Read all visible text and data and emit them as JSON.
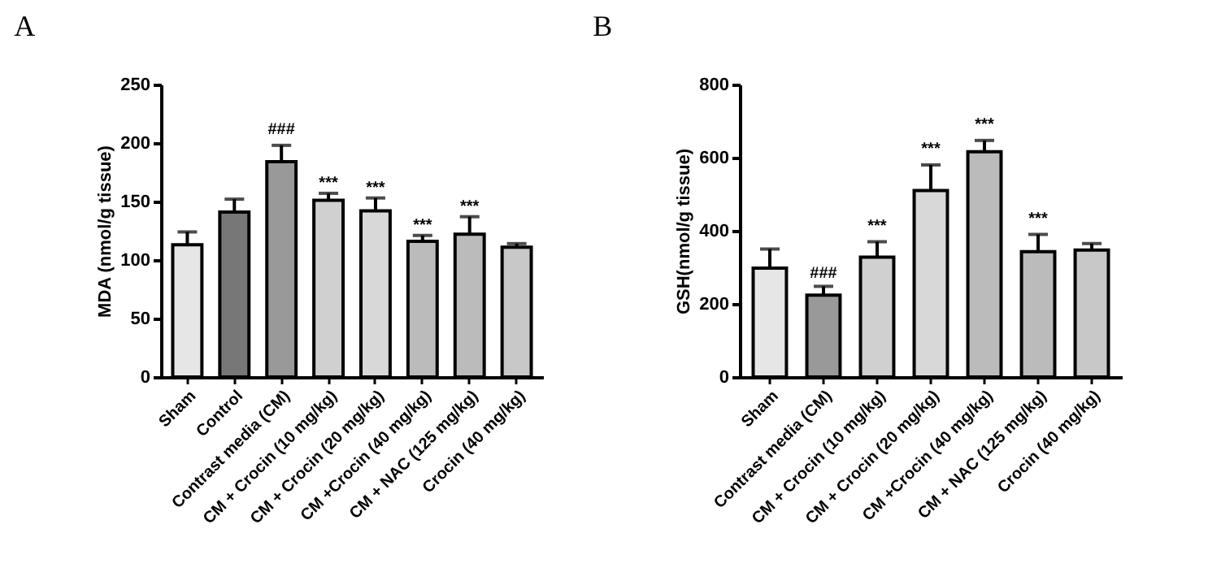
{
  "chart_data": [
    {
      "type": "bar",
      "title": "A",
      "ylabel": "MDA (nmol/g tissue)",
      "categories": [
        "Sham",
        "Control",
        "Contrast media (CM)",
        "CM + Crocin (10 mg/kg)",
        "CM + Crocin (20 mg/kg)",
        "CM +Crocin (40 mg/kg)",
        "CM + NAC (125 mg/kg)",
        "Crocin (40 mg/kg)"
      ],
      "values": [
        113,
        141,
        184,
        151,
        142,
        116,
        122,
        111
      ],
      "errors": [
        [
          113,
          124
        ],
        [
          141,
          152
        ],
        [
          184,
          198
        ],
        [
          151,
          157
        ],
        [
          142,
          153
        ],
        [
          116,
          121
        ],
        [
          122,
          137
        ],
        [
          111,
          114
        ]
      ],
      "colors": [
        "#e6e6e6",
        "#777777",
        "#999999",
        "#d0d0d0",
        "#d8d8d8",
        "#bbbbbb",
        "#bbbbbb",
        "#c8c8c8"
      ],
      "ylim": [
        0,
        250
      ],
      "yticks": [
        0,
        50,
        100,
        150,
        200,
        250
      ],
      "annotations": [
        {
          "text": "###",
          "x": "Contrast media (CM)",
          "y": 205
        },
        {
          "text": "***",
          "x": "CM + Crocin (10 mg/kg)",
          "y": 159
        },
        {
          "text": "***",
          "x": "CM + Crocin (20 mg/kg)",
          "y": 155
        },
        {
          "text": "***",
          "x": "CM +Crocin (40 mg/kg)",
          "y": 123
        },
        {
          "text": "***",
          "x": "CM + NAC (125 mg/kg)",
          "y": 139
        }
      ]
    },
    {
      "type": "bar",
      "title": "B",
      "ylabel": "GSH(nmol/g tissue)",
      "categories": [
        "Sham",
        "Contrast media (CM)",
        "CM + Crocin (10 mg/kg)",
        "CM + Crocin (20 mg/kg)",
        "CM +Crocin (40 mg/kg)",
        "CM + NAC (125 mg/kg)",
        "Crocin (40 mg/kg)"
      ],
      "values": [
        298,
        224,
        328,
        510,
        616,
        343,
        347
      ],
      "errors": [
        [
          298,
          350
        ],
        [
          224,
          248
        ],
        [
          328,
          370
        ],
        [
          510,
          580
        ],
        [
          616,
          647
        ],
        [
          343,
          390
        ],
        [
          347,
          365
        ]
      ],
      "colors": [
        "#e6e6e6",
        "#999999",
        "#d0d0d0",
        "#d8d8d8",
        "#bbbbbb",
        "#bbbbbb",
        "#c8c8c8"
      ],
      "ylim": [
        0,
        800
      ],
      "yticks": [
        0,
        200,
        400,
        600,
        800
      ],
      "annotations": [
        {
          "text": "###",
          "x": "Contrast media (CM)",
          "y": 262
        },
        {
          "text": "***",
          "x": "CM + Crocin (10 mg/kg)",
          "y": 392
        },
        {
          "text": "***",
          "x": "CM + Crocin (20 mg/kg)",
          "y": 602
        },
        {
          "text": "***",
          "x": "CM +Crocin (40 mg/kg)",
          "y": 668
        },
        {
          "text": "***",
          "x": "CM + NAC (125 mg/kg)",
          "y": 412
        }
      ]
    }
  ]
}
